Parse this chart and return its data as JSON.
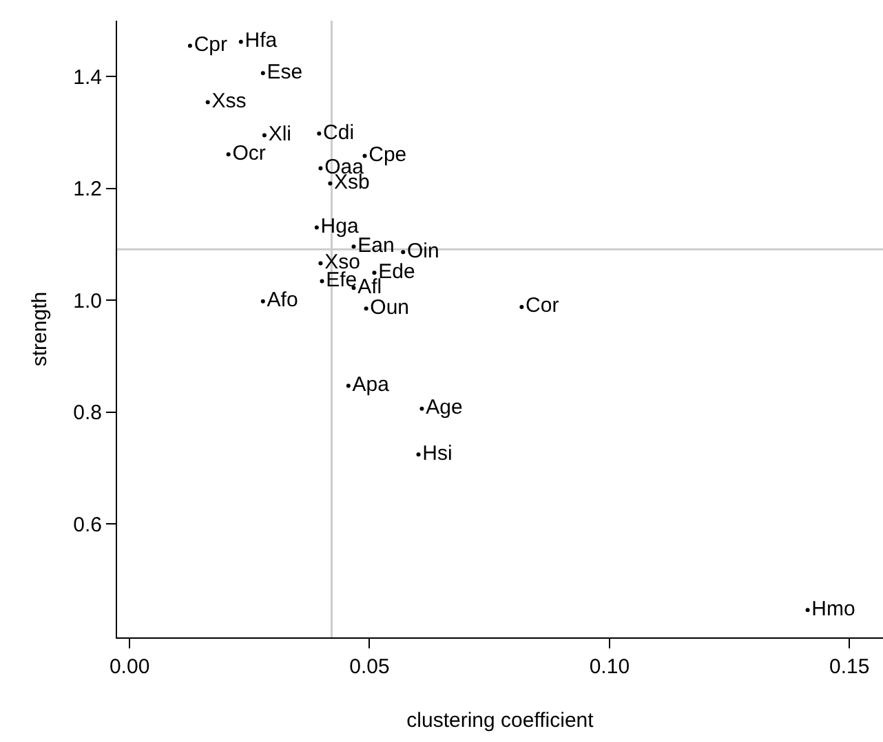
{
  "chart_data": {
    "type": "scatter",
    "xlabel": "clustering coefficient",
    "ylabel": "strength",
    "xlim": [
      -0.0026,
      0.157
    ],
    "ylim": [
      0.397,
      1.5
    ],
    "xticks": [
      {
        "value": 0,
        "label": "0.00"
      },
      {
        "value": 0.05,
        "label": "0.05"
      },
      {
        "value": 0.1,
        "label": "0.10"
      },
      {
        "value": 0.15,
        "label": "0.15"
      }
    ],
    "yticks": [
      {
        "value": 0.6,
        "label": "0.6"
      },
      {
        "value": 0.8,
        "label": "0.8"
      },
      {
        "value": 1,
        "label": "1.0"
      },
      {
        "value": 1.2,
        "label": "1.2"
      },
      {
        "value": 1.4,
        "label": "1.4"
      }
    ],
    "grid": false,
    "legend": false,
    "marker": "circle",
    "ref_lines": [
      {
        "axis": "x",
        "value": 0.0421,
        "color": "#cccccc"
      },
      {
        "axis": "y",
        "value": 1.091,
        "color": "#cccccc"
      }
    ],
    "series": [
      {
        "name": "Cpr",
        "color": "#000000",
        "x": [
          0.0126
        ],
        "values": [
          1.455
        ]
      },
      {
        "name": "Hfa",
        "color": "#000000",
        "x": [
          0.0232
        ],
        "values": [
          1.462
        ]
      },
      {
        "name": "Ese",
        "color": "#000000",
        "x": [
          0.0278
        ],
        "values": [
          1.406
        ]
      },
      {
        "name": "Xss",
        "color": "#000000",
        "x": [
          0.0163
        ],
        "values": [
          1.354
        ]
      },
      {
        "name": "Xli",
        "color": "#000000",
        "x": [
          0.0281
        ],
        "values": [
          1.295
        ]
      },
      {
        "name": "Cdi",
        "color": "#000000",
        "x": [
          0.0395
        ],
        "values": [
          1.298
        ]
      },
      {
        "name": "Ocr",
        "color": "#000000",
        "x": [
          0.0206
        ],
        "values": [
          1.261
        ]
      },
      {
        "name": "Oaa",
        "color": "#000000",
        "x": [
          0.0398
        ],
        "values": [
          1.236
        ]
      },
      {
        "name": "Cpe",
        "color": "#000000",
        "x": [
          0.049
        ],
        "values": [
          1.258
        ]
      },
      {
        "name": "Xsb",
        "color": "#000000",
        "x": [
          0.0418
        ],
        "values": [
          1.209
        ]
      },
      {
        "name": "Hga",
        "color": "#000000",
        "x": [
          0.039
        ],
        "values": [
          1.13
        ]
      },
      {
        "name": "Ean",
        "color": "#000000",
        "x": [
          0.0467
        ],
        "values": [
          1.096
        ]
      },
      {
        "name": "Xso",
        "color": "#000000",
        "x": [
          0.0398
        ],
        "values": [
          1.066
        ]
      },
      {
        "name": "Oin",
        "color": "#000000",
        "x": [
          0.057
        ],
        "values": [
          1.086
        ]
      },
      {
        "name": "Ede",
        "color": "#000000",
        "x": [
          0.051
        ],
        "values": [
          1.049
        ]
      },
      {
        "name": "Efe",
        "color": "#000000",
        "x": [
          0.0401
        ],
        "values": [
          1.034
        ]
      },
      {
        "name": "Afl",
        "color": "#000000",
        "x": [
          0.0467
        ],
        "values": [
          1.022
        ]
      },
      {
        "name": "Afo",
        "color": "#000000",
        "x": [
          0.0278
        ],
        "values": [
          0.998
        ]
      },
      {
        "name": "Oun",
        "color": "#000000",
        "x": [
          0.0493
        ],
        "values": [
          0.985
        ]
      },
      {
        "name": "Cor",
        "color": "#000000",
        "x": [
          0.0817
        ],
        "values": [
          0.988
        ]
      },
      {
        "name": "Apa",
        "color": "#000000",
        "x": [
          0.0456
        ],
        "values": [
          0.847
        ]
      },
      {
        "name": "Age",
        "color": "#000000",
        "x": [
          0.0609
        ],
        "values": [
          0.806
        ]
      },
      {
        "name": "Hsi",
        "color": "#000000",
        "x": [
          0.0602
        ],
        "values": [
          0.724
        ]
      },
      {
        "name": "Hmo",
        "color": "#000000",
        "x": [
          0.1413
        ],
        "values": [
          0.446
        ]
      }
    ]
  }
}
